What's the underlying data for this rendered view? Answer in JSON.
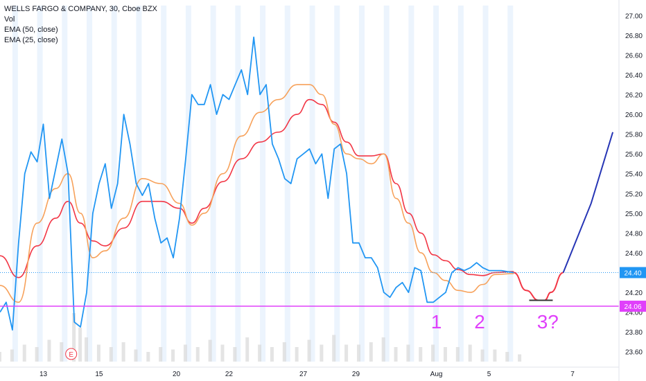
{
  "legend": {
    "title": "WELLS FARGO & COMPANY, 30, Cboe BZX",
    "vol": "Vol",
    "ema50": "EMA (50, close)",
    "ema25": "EMA (25, close)"
  },
  "colors": {
    "price": "#2196F3",
    "ema50": "#F23645",
    "ema25": "#F7A15A",
    "support": "#E040FB",
    "lastline": "#2196F3",
    "projection_up": "#2635B5",
    "annotations": "#E040FB",
    "session_band": "#DCEBFB",
    "volume": "#D9D9D9"
  },
  "annotations": {
    "label1": "1",
    "label2": "2",
    "label3": "3?",
    "earnings_marker": "E"
  },
  "badges": {
    "last_price": "24.40",
    "support_price": "24.06"
  },
  "chart_data": {
    "type": "line",
    "title": "WELLS FARGO & COMPANY, 30, Cboe BZX",
    "ylim": [
      23.5,
      27.1
    ],
    "y_ticks": [
      23.6,
      23.8,
      24.0,
      24.2,
      24.4,
      24.6,
      24.8,
      25.0,
      25.2,
      25.4,
      25.6,
      25.8,
      26.0,
      26.2,
      26.4,
      26.6,
      26.8,
      27.0
    ],
    "y_tick_labels": [
      "23.60",
      "23.80",
      "24.00",
      "24.20",
      "24.40",
      "24.60",
      "24.80",
      "25.00",
      "25.20",
      "25.40",
      "25.60",
      "25.80",
      "26.00",
      "26.20",
      "26.40",
      "26.60",
      "26.80",
      "27.00"
    ],
    "x_index_range": [
      0,
      100
    ],
    "x_ticks": [
      {
        "index": 7,
        "label": "13"
      },
      {
        "index": 16,
        "label": "15"
      },
      {
        "index": 28.5,
        "label": "20"
      },
      {
        "index": 37,
        "label": "22"
      },
      {
        "index": 49,
        "label": "27"
      },
      {
        "index": 57.5,
        "label": "29"
      },
      {
        "index": 70.5,
        "label": "Aug"
      },
      {
        "index": 79,
        "label": "5"
      },
      {
        "index": 92.5,
        "label": "7"
      }
    ],
    "support_level": 24.06,
    "last_price": 24.4,
    "series": [
      {
        "name": "WELLS FARGO & COMPANY",
        "x": [
          0,
          1,
          2,
          3,
          4,
          5,
          6,
          7,
          8,
          9,
          10,
          11,
          12,
          13,
          14,
          15,
          16,
          17,
          18,
          19,
          20,
          21,
          22,
          23,
          24,
          25,
          26,
          27,
          28,
          29,
          30,
          31,
          32,
          33,
          34,
          35,
          36,
          37,
          38,
          39,
          40,
          41,
          42,
          43,
          44,
          45,
          46,
          47,
          48,
          49,
          50,
          51,
          52,
          53,
          54,
          55,
          56,
          57,
          58,
          59,
          60,
          61,
          62,
          63,
          64,
          65,
          66,
          67,
          68,
          69,
          70,
          71,
          72,
          73,
          74,
          75,
          76,
          77,
          78,
          79,
          80,
          81,
          82,
          83
        ],
        "values": [
          24.0,
          24.1,
          23.82,
          24.7,
          25.4,
          25.62,
          25.52,
          25.9,
          25.15,
          25.45,
          25.75,
          25.4,
          23.9,
          23.85,
          24.2,
          25.0,
          25.3,
          25.5,
          25.05,
          25.3,
          26.0,
          25.7,
          25.3,
          25.18,
          25.3,
          24.95,
          24.7,
          24.75,
          24.55,
          24.95,
          25.55,
          26.2,
          26.1,
          26.1,
          26.3,
          26.0,
          26.2,
          26.15,
          26.3,
          26.45,
          26.2,
          26.78,
          26.2,
          26.3,
          25.7,
          25.55,
          25.35,
          25.3,
          25.55,
          25.6,
          25.65,
          25.5,
          25.6,
          25.15,
          25.65,
          25.7,
          25.4,
          24.7,
          24.7,
          24.55,
          24.55,
          24.45,
          24.2,
          24.15,
          24.25,
          24.3,
          24.2,
          24.45,
          24.42,
          24.1,
          24.1,
          24.15,
          24.2,
          24.4,
          24.45,
          24.42,
          24.45,
          24.5,
          24.45,
          24.42,
          24.42,
          24.42,
          24.41,
          24.4
        ]
      },
      {
        "name": "EMA (50, close)",
        "x": [
          0,
          3,
          6,
          9,
          11,
          13,
          15,
          17,
          20,
          23,
          26,
          29,
          31,
          33,
          36,
          39,
          42,
          45,
          48,
          50,
          52,
          54,
          56,
          58,
          60,
          62,
          64,
          66,
          68,
          70,
          72,
          74,
          76,
          78,
          80,
          83
        ],
        "values": [
          24.57,
          24.35,
          24.67,
          24.95,
          25.12,
          24.9,
          24.72,
          24.67,
          24.85,
          25.12,
          25.12,
          25.05,
          24.9,
          25.05,
          25.32,
          25.55,
          25.72,
          25.82,
          26.0,
          26.15,
          26.1,
          25.92,
          25.72,
          25.58,
          25.58,
          25.6,
          25.3,
          25.0,
          24.8,
          24.58,
          24.52,
          24.43,
          24.38,
          24.37,
          24.4,
          24.41
        ]
      },
      {
        "name": "EMA (25, close)",
        "x": [
          0,
          3,
          6,
          9,
          11,
          13,
          15,
          17,
          20,
          23,
          26,
          29,
          31,
          33,
          36,
          39,
          42,
          45,
          48,
          50,
          52,
          54,
          56,
          58,
          60,
          62,
          64,
          66,
          68,
          70,
          72,
          74,
          76,
          78,
          80,
          83
        ],
        "values": [
          24.27,
          24.1,
          24.9,
          25.25,
          25.4,
          25.0,
          24.55,
          24.62,
          24.95,
          25.35,
          25.3,
          25.1,
          24.88,
          25.0,
          25.4,
          25.78,
          26.02,
          26.15,
          26.3,
          26.3,
          26.2,
          25.9,
          25.6,
          25.55,
          25.5,
          25.6,
          25.15,
          24.9,
          24.6,
          24.4,
          24.32,
          24.22,
          24.2,
          24.28,
          24.38,
          24.39
        ]
      }
    ],
    "projection_down": {
      "x": [
        83,
        85,
        87,
        88,
        89,
        91
      ],
      "values": [
        24.4,
        24.22,
        24.12,
        24.12,
        24.2,
        24.4
      ]
    },
    "projection_up": {
      "x": [
        91,
        95.5,
        99
      ],
      "values": [
        24.4,
        25.1,
        25.82
      ]
    },
    "neckline_bottom": {
      "x": [
        85.5,
        89.3
      ],
      "value": 24.12
    },
    "volume": {
      "x": [
        0,
        2,
        4,
        6,
        8,
        10,
        12,
        13,
        14,
        16,
        18,
        20,
        22,
        24,
        26,
        28,
        30,
        32,
        34,
        36,
        38,
        40,
        42,
        44,
        46,
        48,
        50,
        52,
        54,
        56,
        58,
        60,
        62,
        64,
        66,
        68,
        70,
        72,
        74,
        76,
        78,
        80,
        82,
        84
      ],
      "values": [
        0.2,
        0.25,
        0.35,
        0.3,
        0.45,
        0.4,
        1.0,
        0.7,
        0.5,
        0.35,
        0.3,
        0.4,
        0.25,
        0.2,
        0.3,
        0.25,
        0.35,
        0.3,
        0.45,
        0.35,
        0.3,
        0.5,
        0.35,
        0.3,
        0.4,
        0.3,
        0.45,
        0.35,
        0.55,
        0.35,
        0.35,
        0.4,
        0.5,
        0.3,
        0.35,
        0.3,
        0.35,
        0.3,
        0.3,
        0.35,
        0.25,
        0.25,
        0.2,
        0.15
      ]
    },
    "session_bands_x": [
      2,
      6,
      10,
      14,
      18,
      22,
      26,
      30,
      34,
      38,
      42,
      46,
      50,
      54,
      58,
      62,
      66,
      70,
      74,
      78,
      82
    ],
    "earnings_x": 11.5
  }
}
